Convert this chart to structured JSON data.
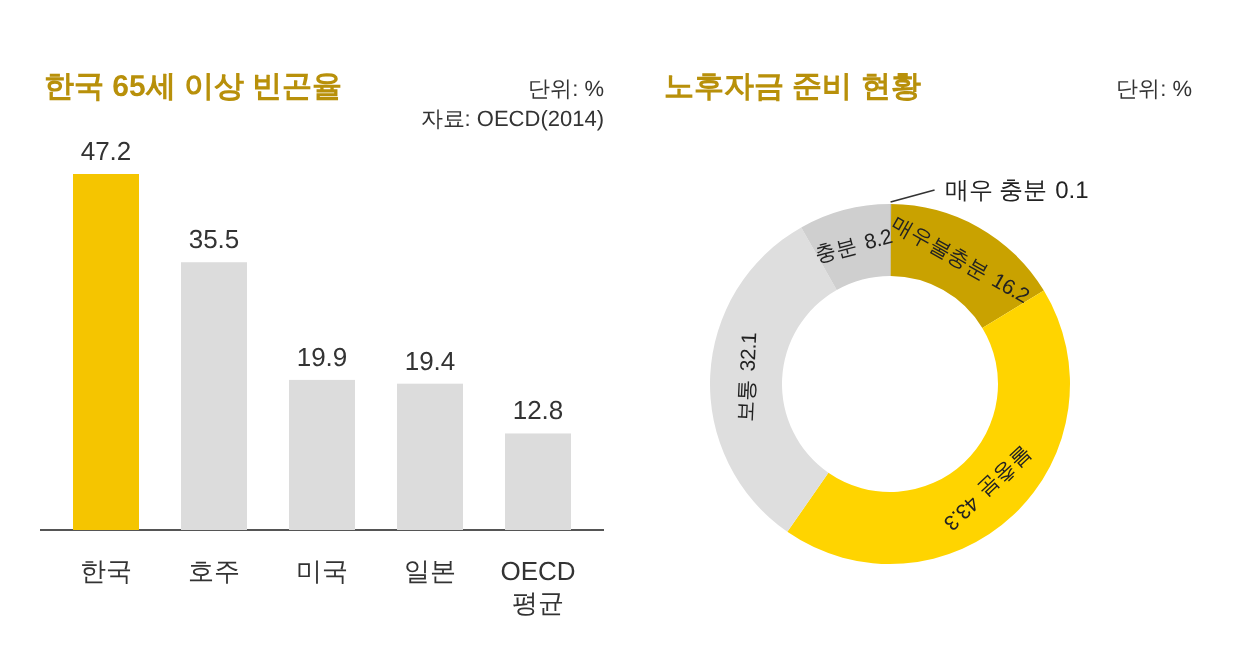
{
  "chart_data": [
    {
      "type": "bar",
      "title": "한국 65세 이상 빈곤율",
      "categories": [
        "한국",
        "호주",
        "미국",
        "일본",
        "OECD 평균"
      ],
      "values": [
        47.2,
        35.5,
        19.9,
        19.4,
        12.8
      ],
      "colors": [
        "#f5c500",
        "#dcdcdc",
        "#dcdcdc",
        "#dcdcdc",
        "#dcdcdc"
      ],
      "data_labels": true,
      "annotations": [
        "단위: %",
        "자료: OECD(2014)"
      ]
    },
    {
      "type": "donut",
      "title": "노후자금 준비 현황",
      "categories": [
        "매우 충분",
        "매우불충분",
        "불충분",
        "보통",
        "충분"
      ],
      "values": [
        0.1,
        16.2,
        43.3,
        32.1,
        8.2
      ],
      "colors": [
        "#bdbdbd",
        "#c9a200",
        "#ffd400",
        "#dedede",
        "#cfcfcf"
      ],
      "data_labels": true,
      "annotations": [
        "단위: %"
      ]
    }
  ]
}
